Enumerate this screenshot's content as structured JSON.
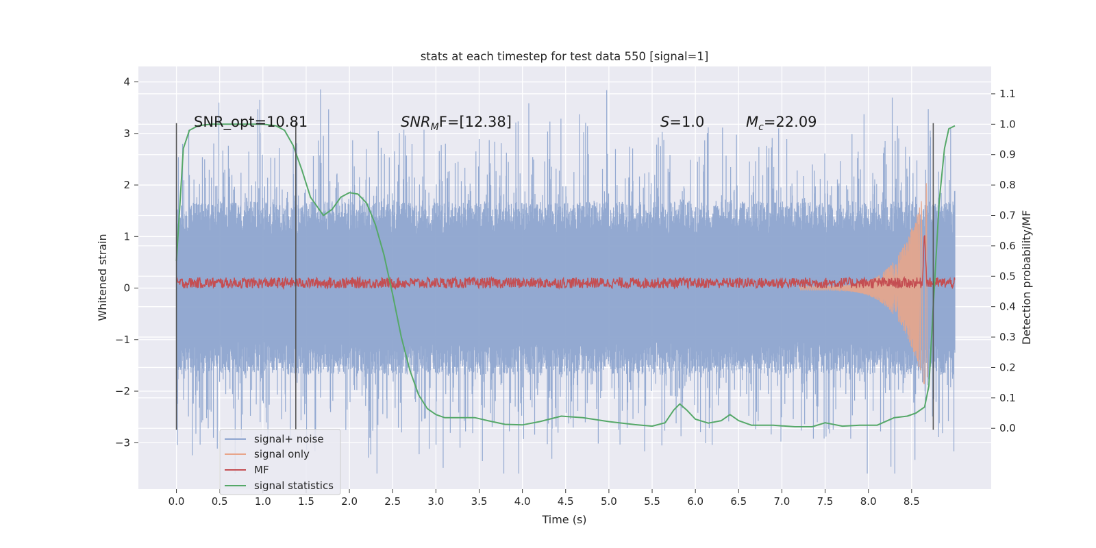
{
  "chart_data": {
    "type": "line",
    "title": "stats at each timestep for test data 550 [signal=1]",
    "xlabel": "Time (s)",
    "ylabel": "Whitened strain",
    "ylabel_right": "Detection probability/MF",
    "xlim": [
      -0.44,
      9.42
    ],
    "ylim": [
      -3.9,
      4.3
    ],
    "ylim_right": [
      -0.2,
      1.19
    ],
    "x_ticks": [
      "0.0",
      "0.5",
      "1.0",
      "1.5",
      "2.0",
      "2.5",
      "3.0",
      "3.5",
      "4.0",
      "4.5",
      "5.0",
      "5.5",
      "6.0",
      "6.5",
      "7.0",
      "7.5",
      "8.0",
      "8.5"
    ],
    "y_ticks": [
      "4",
      "3",
      "2",
      "1",
      "0",
      "−1",
      "−2",
      "−3"
    ],
    "y_right_ticks": [
      "1.1",
      "1.0",
      "0.9",
      "0.8",
      "0.7",
      "0.6",
      "0.5",
      "0.4",
      "0.3",
      "0.2",
      "0.1",
      "0.0"
    ],
    "grid": true,
    "legend_position": "lower-left",
    "annotations": {
      "snr_opt": "SNR_opt=10.81",
      "snr_mf_main": "SNR",
      "snr_mf_sub": "M",
      "snr_mf_rest": "F=[12.38]",
      "s_var": "S",
      "s_rest": "=1.0",
      "mc_var": "M",
      "mc_sub": "c",
      "mc_rest": "=22.09"
    },
    "vertical_markers": [
      {
        "x": 0.0,
        "y_range": [
          -2.75,
          3.2
        ]
      },
      {
        "x": 1.38,
        "y_range": [
          -2.75,
          3.2
        ]
      },
      {
        "x": 8.75,
        "y_range": [
          -2.75,
          3.2
        ]
      }
    ],
    "series": [
      {
        "name": "signal+ noise",
        "color": "#8ea5cf",
        "axis": "left",
        "t_end": 9.0,
        "base_amplitude": 1.4,
        "peak_amplitude": 4.0
      },
      {
        "name": "signal only",
        "color": "#e8a58a",
        "axis": "left",
        "chirp_start": 7.2,
        "chirp_end": 8.68,
        "peak_amplitude": 2.2
      },
      {
        "name": "MF",
        "color": "#c44e52",
        "axis": "left",
        "level": 0.1,
        "jitter": 0.13
      },
      {
        "name": "signal statistics",
        "color": "#55a868",
        "axis": "right",
        "points": [
          [
            0.0,
            0.55
          ],
          [
            0.08,
            0.92
          ],
          [
            0.15,
            0.98
          ],
          [
            0.25,
            0.995
          ],
          [
            0.4,
            1.0
          ],
          [
            0.8,
            1.0
          ],
          [
            1.0,
            1.0
          ],
          [
            1.15,
            0.995
          ],
          [
            1.25,
            0.98
          ],
          [
            1.35,
            0.93
          ],
          [
            1.45,
            0.85
          ],
          [
            1.55,
            0.76
          ],
          [
            1.65,
            0.72
          ],
          [
            1.7,
            0.7
          ],
          [
            1.8,
            0.72
          ],
          [
            1.9,
            0.76
          ],
          [
            2.0,
            0.775
          ],
          [
            2.1,
            0.77
          ],
          [
            2.2,
            0.74
          ],
          [
            2.3,
            0.67
          ],
          [
            2.4,
            0.57
          ],
          [
            2.5,
            0.44
          ],
          [
            2.6,
            0.3
          ],
          [
            2.7,
            0.19
          ],
          [
            2.8,
            0.11
          ],
          [
            2.9,
            0.065
          ],
          [
            3.0,
            0.045
          ],
          [
            3.1,
            0.035
          ],
          [
            3.25,
            0.035
          ],
          [
            3.45,
            0.035
          ],
          [
            3.6,
            0.025
          ],
          [
            3.8,
            0.013
          ],
          [
            4.0,
            0.011
          ],
          [
            4.2,
            0.022
          ],
          [
            4.45,
            0.04
          ],
          [
            4.7,
            0.035
          ],
          [
            5.0,
            0.022
          ],
          [
            5.3,
            0.012
          ],
          [
            5.5,
            0.007
          ],
          [
            5.65,
            0.018
          ],
          [
            5.75,
            0.06
          ],
          [
            5.82,
            0.08
          ],
          [
            5.9,
            0.06
          ],
          [
            6.0,
            0.03
          ],
          [
            6.15,
            0.017
          ],
          [
            6.3,
            0.025
          ],
          [
            6.4,
            0.045
          ],
          [
            6.5,
            0.025
          ],
          [
            6.65,
            0.01
          ],
          [
            6.9,
            0.01
          ],
          [
            7.0,
            0.008
          ],
          [
            7.15,
            0.005
          ],
          [
            7.35,
            0.005
          ],
          [
            7.5,
            0.018
          ],
          [
            7.7,
            0.007
          ],
          [
            7.9,
            0.01
          ],
          [
            8.1,
            0.01
          ],
          [
            8.3,
            0.035
          ],
          [
            8.45,
            0.04
          ],
          [
            8.55,
            0.05
          ],
          [
            8.65,
            0.07
          ],
          [
            8.7,
            0.14
          ],
          [
            8.75,
            0.4
          ],
          [
            8.82,
            0.75
          ],
          [
            8.88,
            0.92
          ],
          [
            8.93,
            0.985
          ],
          [
            9.0,
            0.995
          ]
        ]
      }
    ]
  },
  "legend": [
    {
      "label": "signal+ noise",
      "color": "#8ea5cf"
    },
    {
      "label": "signal only",
      "color": "#e8a58a"
    },
    {
      "label": "MF",
      "color": "#c44e52"
    },
    {
      "label": "signal statistics",
      "color": "#55a868"
    }
  ]
}
